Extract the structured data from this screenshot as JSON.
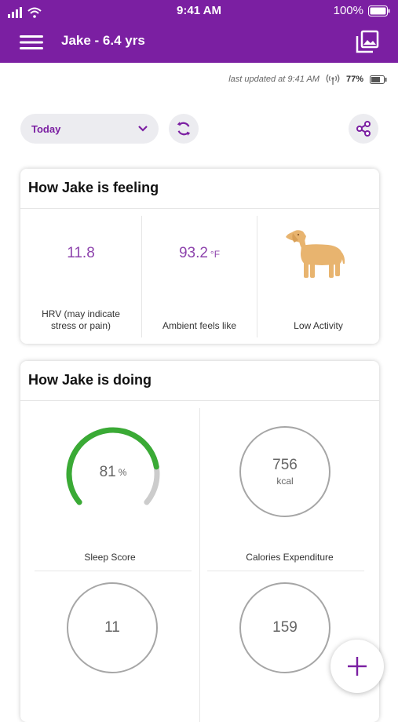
{
  "status_bar": {
    "time": "9:41 AM",
    "battery": "100%"
  },
  "app_bar": {
    "title": "Jake - 6.4 yrs"
  },
  "device": {
    "last_updated": "last updated at 9:41 AM",
    "battery": "77%"
  },
  "controls": {
    "range": "Today"
  },
  "feeling": {
    "title": "How Jake is feeling",
    "hrv": {
      "value": "11.8",
      "label": "HRV (may indicate stress or pain)"
    },
    "ambient": {
      "value": "93.2",
      "unit": "°F",
      "label": "Ambient feels like"
    },
    "activity": {
      "label": "Low Activity"
    }
  },
  "doing": {
    "title": "How Jake is doing",
    "sleep": {
      "value": "81",
      "unit": "%",
      "label": "Sleep Score",
      "score_fraction": 0.81
    },
    "calories": {
      "value": "756",
      "unit": "kcal",
      "label": "Calories Expenditure"
    },
    "tile3": {
      "value": "11"
    },
    "tile4": {
      "value": "159"
    }
  },
  "colors": {
    "brand": "#7b1fa2",
    "accent_value": "#8e44ad",
    "dog": "#e8b46f",
    "gauge": "#3aaa35",
    "gauge_track": "#cccccc"
  },
  "icons": [
    "signal-icon",
    "wifi-icon",
    "battery-icon",
    "menu-icon",
    "gallery-icon",
    "broadcast-icon",
    "chevron-down-icon",
    "refresh-icon",
    "share-icon",
    "dog-icon",
    "plus-icon"
  ]
}
